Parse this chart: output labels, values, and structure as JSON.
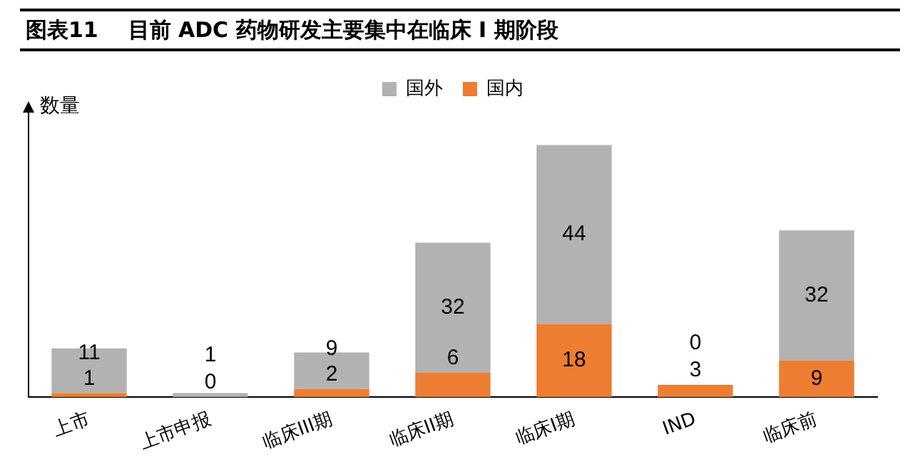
{
  "chart_data": {
    "type": "bar",
    "title": "图表11    目前 ADC 药物研发主要集中在临床 I 期阶段",
    "ylabel": "数量",
    "categories": [
      "上市",
      "上市申报",
      "临床III期",
      "临床II期",
      "临床I期",
      "IND",
      "临床前"
    ],
    "stacked": true,
    "data_labels": true,
    "legend": "top",
    "grid": false,
    "series": [
      {
        "name": "国内",
        "color": "#ed7d31",
        "values": [
          1,
          0,
          2,
          6,
          18,
          3,
          9
        ]
      },
      {
        "name": "国外",
        "color": "#b2b2b2",
        "values": [
          11,
          1,
          9,
          32,
          44,
          0,
          32
        ]
      }
    ]
  }
}
